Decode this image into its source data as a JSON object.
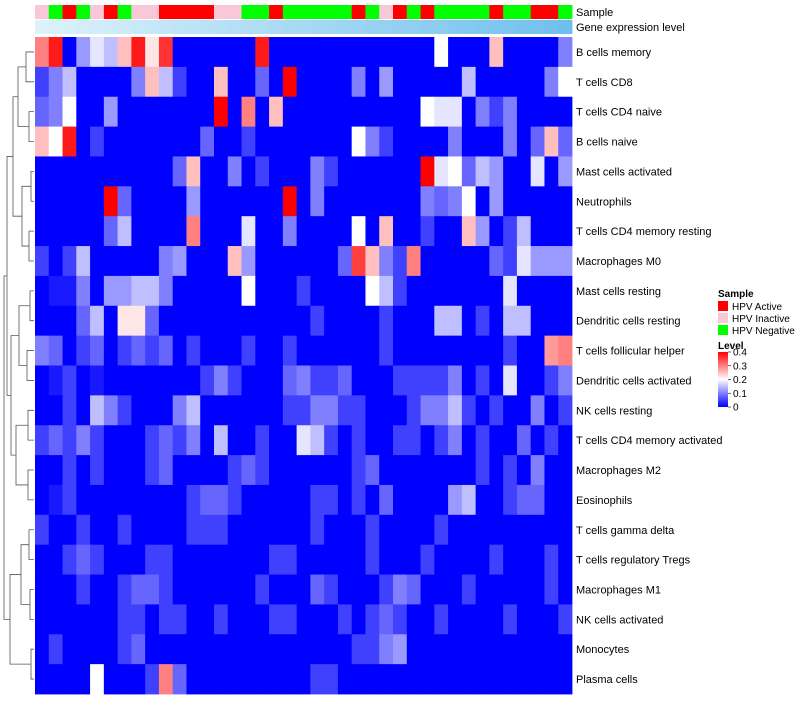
{
  "chart_data": {
    "type": "heatmap",
    "annotations": [
      {
        "name": "Sample",
        "key": "sample"
      },
      {
        "name": "Gene expression level",
        "key": "expr"
      }
    ],
    "sample_groups": [
      "I",
      "N",
      "A",
      "N",
      "I",
      "A",
      "N",
      "I",
      "I",
      "A",
      "A",
      "A",
      "A",
      "I",
      "I",
      "N",
      "N",
      "A",
      "N",
      "N",
      "N",
      "N",
      "N",
      "A",
      "N",
      "I",
      "A",
      "N",
      "A",
      "N",
      "N",
      "N",
      "N",
      "A",
      "N",
      "N",
      "A",
      "A",
      "N"
    ],
    "expression_level": [
      0.0,
      0.03,
      0.05,
      0.08,
      0.1,
      0.13,
      0.15,
      0.18,
      0.21,
      0.23,
      0.26,
      0.28,
      0.31,
      0.33,
      0.36,
      0.38,
      0.41,
      0.44,
      0.46,
      0.49,
      0.51,
      0.54,
      0.56,
      0.59,
      0.62,
      0.64,
      0.67,
      0.69,
      0.72,
      0.74,
      0.77,
      0.79,
      0.82,
      0.85,
      0.87,
      0.9,
      0.92,
      0.95,
      1.0
    ],
    "rows": [
      {
        "name": "B cells memory",
        "values": [
          0.3,
          0.38,
          0.0,
          0.12,
          0.18,
          0.15,
          0.25,
          0.38,
          0.22,
          0.36,
          0.0,
          0.0,
          0.0,
          0.0,
          0.0,
          0.0,
          0.38,
          0.0,
          0.0,
          0.0,
          0.0,
          0.0,
          0.0,
          0.0,
          0.0,
          0.0,
          0.0,
          0.0,
          0.0,
          0.2,
          0.0,
          0.0,
          0.0,
          0.25,
          0.0,
          0.0,
          0.0,
          0.0,
          0.1
        ]
      },
      {
        "name": "T cells CD8",
        "values": [
          0.05,
          0.1,
          0.15,
          0.0,
          0.0,
          0.0,
          0.0,
          0.1,
          0.25,
          0.15,
          0.05,
          0.0,
          0.0,
          0.25,
          0.0,
          0.0,
          0.08,
          0.0,
          0.4,
          0.0,
          0.0,
          0.0,
          0.0,
          0.1,
          0.0,
          0.12,
          0.0,
          0.0,
          0.0,
          0.0,
          0.0,
          0.15,
          0.0,
          0.0,
          0.0,
          0.0,
          0.0,
          0.1,
          0.2
        ]
      },
      {
        "name": "T cells CD4 naive",
        "values": [
          0.08,
          0.1,
          0.2,
          0.0,
          0.0,
          0.12,
          0.0,
          0.0,
          0.0,
          0.0,
          0.0,
          0.0,
          0.0,
          0.4,
          0.0,
          0.3,
          0.0,
          0.25,
          0.0,
          0.0,
          0.0,
          0.0,
          0.0,
          0.0,
          0.0,
          0.0,
          0.0,
          0.0,
          0.2,
          0.18,
          0.18,
          0.0,
          0.1,
          0.05,
          0.1,
          0.0,
          0.0,
          0.0,
          0.0
        ]
      },
      {
        "name": "B cells naive",
        "values": [
          0.25,
          0.2,
          0.38,
          0.0,
          0.05,
          0.0,
          0.0,
          0.0,
          0.0,
          0.0,
          0.0,
          0.0,
          0.08,
          0.0,
          0.0,
          0.05,
          0.0,
          0.0,
          0.0,
          0.0,
          0.0,
          0.0,
          0.0,
          0.2,
          0.1,
          0.05,
          0.0,
          0.0,
          0.0,
          0.0,
          0.1,
          0.0,
          0.0,
          0.0,
          0.1,
          0.0,
          0.08,
          0.25,
          0.08
        ]
      },
      {
        "name": "Mast cells activated",
        "values": [
          0.0,
          0.0,
          0.0,
          0.0,
          0.0,
          0.0,
          0.0,
          0.0,
          0.0,
          0.0,
          0.08,
          0.25,
          0.0,
          0.0,
          0.1,
          0.0,
          0.05,
          0.0,
          0.0,
          0.0,
          0.1,
          0.05,
          0.0,
          0.0,
          0.0,
          0.0,
          0.0,
          0.0,
          0.4,
          0.18,
          0.2,
          0.08,
          0.15,
          0.12,
          0.0,
          0.0,
          0.18,
          0.0,
          0.12
        ]
      },
      {
        "name": "Neutrophils",
        "values": [
          0.0,
          0.0,
          0.0,
          0.0,
          0.0,
          0.4,
          0.08,
          0.0,
          0.0,
          0.0,
          0.0,
          0.12,
          0.0,
          0.0,
          0.0,
          0.0,
          0.0,
          0.0,
          0.4,
          0.0,
          0.1,
          0.0,
          0.0,
          0.0,
          0.0,
          0.0,
          0.0,
          0.0,
          0.1,
          0.08,
          0.1,
          0.2,
          0.0,
          0.12,
          0.0,
          0.0,
          0.0,
          0.0,
          0.0
        ]
      },
      {
        "name": "T cells CD4 memory resting",
        "values": [
          0.0,
          0.0,
          0.0,
          0.0,
          0.0,
          0.08,
          0.15,
          0.0,
          0.0,
          0.0,
          0.0,
          0.3,
          0.0,
          0.0,
          0.0,
          0.18,
          0.0,
          0.0,
          0.1,
          0.0,
          0.0,
          0.0,
          0.0,
          0.2,
          0.0,
          0.25,
          0.0,
          0.0,
          0.05,
          0.0,
          0.0,
          0.25,
          0.12,
          0.0,
          0.05,
          0.15,
          0.0,
          0.0,
          0.0
        ]
      },
      {
        "name": "Macrophages M0",
        "values": [
          0.05,
          0.0,
          0.05,
          0.15,
          0.0,
          0.0,
          0.0,
          0.0,
          0.0,
          0.1,
          0.12,
          0.0,
          0.0,
          0.0,
          0.25,
          0.12,
          0.0,
          0.0,
          0.0,
          0.0,
          0.0,
          0.0,
          0.08,
          0.35,
          0.25,
          0.1,
          0.05,
          0.3,
          0.0,
          0.0,
          0.0,
          0.0,
          0.0,
          0.08,
          0.05,
          0.18,
          0.12,
          0.12,
          0.12
        ]
      },
      {
        "name": "Mast cells resting",
        "values": [
          0.0,
          0.02,
          0.02,
          0.1,
          0.0,
          0.12,
          0.12,
          0.15,
          0.15,
          0.1,
          0.0,
          0.0,
          0.0,
          0.0,
          0.0,
          0.2,
          0.0,
          0.0,
          0.0,
          0.05,
          0.0,
          0.0,
          0.0,
          0.0,
          0.2,
          0.15,
          0.05,
          0.0,
          0.0,
          0.0,
          0.0,
          0.0,
          0.0,
          0.0,
          0.18,
          0.0,
          0.0,
          0.0,
          0.0
        ]
      },
      {
        "name": "Dendritic cells resting",
        "values": [
          0.0,
          0.0,
          0.0,
          0.08,
          0.15,
          0.0,
          0.22,
          0.22,
          0.08,
          0.0,
          0.0,
          0.0,
          0.0,
          0.0,
          0.0,
          0.0,
          0.0,
          0.0,
          0.0,
          0.0,
          0.05,
          0.0,
          0.0,
          0.0,
          0.0,
          0.05,
          0.0,
          0.0,
          0.0,
          0.15,
          0.15,
          0.0,
          0.05,
          0.0,
          0.15,
          0.15,
          0.0,
          0.0,
          0.0
        ]
      },
      {
        "name": "T cells follicular helper",
        "values": [
          0.1,
          0.08,
          0.0,
          0.05,
          0.08,
          0.0,
          0.05,
          0.08,
          0.05,
          0.08,
          0.0,
          0.05,
          0.0,
          0.0,
          0.0,
          0.05,
          0.0,
          0.0,
          0.05,
          0.0,
          0.0,
          0.0,
          0.0,
          0.0,
          0.0,
          0.05,
          0.0,
          0.0,
          0.0,
          0.0,
          0.0,
          0.0,
          0.0,
          0.0,
          0.05,
          0.0,
          0.0,
          0.28,
          0.3
        ]
      },
      {
        "name": "Dendritic cells activated",
        "values": [
          0.0,
          0.02,
          0.05,
          0.0,
          0.02,
          0.0,
          0.0,
          0.0,
          0.0,
          0.0,
          0.0,
          0.0,
          0.05,
          0.1,
          0.05,
          0.0,
          0.0,
          0.0,
          0.08,
          0.1,
          0.05,
          0.05,
          0.08,
          0.0,
          0.0,
          0.0,
          0.05,
          0.05,
          0.05,
          0.05,
          0.1,
          0.0,
          0.05,
          0.0,
          0.18,
          0.0,
          0.0,
          0.05,
          0.1
        ]
      },
      {
        "name": "NK cells resting",
        "values": [
          0.0,
          0.0,
          0.05,
          0.0,
          0.15,
          0.1,
          0.05,
          0.0,
          0.0,
          0.0,
          0.1,
          0.15,
          0.0,
          0.0,
          0.0,
          0.0,
          0.0,
          0.0,
          0.05,
          0.05,
          0.1,
          0.1,
          0.05,
          0.05,
          0.0,
          0.0,
          0.0,
          0.05,
          0.1,
          0.1,
          0.15,
          0.05,
          0.0,
          0.05,
          0.0,
          0.0,
          0.1,
          0.0,
          0.05
        ]
      },
      {
        "name": "T cells CD4 memory activated",
        "values": [
          0.05,
          0.08,
          0.05,
          0.1,
          0.05,
          0.0,
          0.0,
          0.0,
          0.05,
          0.08,
          0.05,
          0.1,
          0.0,
          0.15,
          0.0,
          0.0,
          0.05,
          0.0,
          0.0,
          0.18,
          0.15,
          0.05,
          0.0,
          0.05,
          0.0,
          0.0,
          0.05,
          0.05,
          0.0,
          0.05,
          0.1,
          0.0,
          0.05,
          0.0,
          0.0,
          0.08,
          0.0,
          0.05,
          0.0
        ]
      },
      {
        "name": "Macrophages M2",
        "values": [
          0.0,
          0.0,
          0.05,
          0.0,
          0.05,
          0.0,
          0.0,
          0.0,
          0.05,
          0.08,
          0.0,
          0.0,
          0.0,
          0.0,
          0.05,
          0.08,
          0.05,
          0.0,
          0.0,
          0.0,
          0.0,
          0.0,
          0.0,
          0.05,
          0.08,
          0.0,
          0.0,
          0.0,
          0.0,
          0.0,
          0.0,
          0.0,
          0.05,
          0.0,
          0.05,
          0.0,
          0.1,
          0.0,
          0.0
        ]
      },
      {
        "name": "Eosinophils",
        "values": [
          0.0,
          0.02,
          0.05,
          0.0,
          0.0,
          0.0,
          0.0,
          0.0,
          0.0,
          0.0,
          0.0,
          0.05,
          0.08,
          0.08,
          0.05,
          0.0,
          0.0,
          0.0,
          0.0,
          0.0,
          0.05,
          0.05,
          0.0,
          0.05,
          0.0,
          0.08,
          0.0,
          0.0,
          0.0,
          0.0,
          0.12,
          0.15,
          0.0,
          0.0,
          0.05,
          0.08,
          0.08,
          0.0,
          0.0
        ]
      },
      {
        "name": "T cells gamma delta",
        "values": [
          0.05,
          0.0,
          0.0,
          0.05,
          0.0,
          0.0,
          0.05,
          0.0,
          0.0,
          0.0,
          0.0,
          0.05,
          0.05,
          0.05,
          0.0,
          0.0,
          0.0,
          0.0,
          0.0,
          0.0,
          0.05,
          0.0,
          0.0,
          0.0,
          0.05,
          0.0,
          0.0,
          0.0,
          0.0,
          0.05,
          0.0,
          0.0,
          0.0,
          0.0,
          0.0,
          0.0,
          0.0,
          0.0,
          0.0
        ]
      },
      {
        "name": "T cells regulatory  Tregs",
        "values": [
          0.0,
          0.0,
          0.05,
          0.08,
          0.05,
          0.0,
          0.0,
          0.0,
          0.05,
          0.05,
          0.0,
          0.0,
          0.0,
          0.0,
          0.0,
          0.0,
          0.0,
          0.05,
          0.05,
          0.0,
          0.0,
          0.0,
          0.0,
          0.0,
          0.05,
          0.0,
          0.0,
          0.0,
          0.05,
          0.0,
          0.0,
          0.0,
          0.0,
          0.05,
          0.0,
          0.0,
          0.0,
          0.05,
          0.0
        ]
      },
      {
        "name": "Macrophages M1",
        "values": [
          0.0,
          0.0,
          0.0,
          0.05,
          0.0,
          0.0,
          0.05,
          0.08,
          0.08,
          0.05,
          0.0,
          0.0,
          0.0,
          0.0,
          0.0,
          0.0,
          0.05,
          0.0,
          0.0,
          0.0,
          0.08,
          0.05,
          0.0,
          0.0,
          0.0,
          0.05,
          0.1,
          0.08,
          0.0,
          0.0,
          0.0,
          0.05,
          0.0,
          0.0,
          0.0,
          0.0,
          0.0,
          0.05,
          0.0
        ]
      },
      {
        "name": "NK cells activated",
        "values": [
          0.0,
          0.0,
          0.0,
          0.0,
          0.0,
          0.0,
          0.05,
          0.05,
          0.0,
          0.05,
          0.05,
          0.0,
          0.0,
          0.05,
          0.0,
          0.0,
          0.0,
          0.05,
          0.05,
          0.0,
          0.0,
          0.0,
          0.05,
          0.0,
          0.05,
          0.08,
          0.05,
          0.0,
          0.0,
          0.05,
          0.0,
          0.0,
          0.0,
          0.0,
          0.05,
          0.0,
          0.0,
          0.0,
          0.05
        ]
      },
      {
        "name": "Monocytes",
        "values": [
          0.0,
          0.05,
          0.0,
          0.0,
          0.0,
          0.0,
          0.05,
          0.08,
          0.0,
          0.0,
          0.0,
          0.0,
          0.0,
          0.0,
          0.0,
          0.0,
          0.0,
          0.0,
          0.0,
          0.0,
          0.0,
          0.0,
          0.0,
          0.05,
          0.05,
          0.1,
          0.12,
          0.0,
          0.0,
          0.0,
          0.0,
          0.0,
          0.0,
          0.0,
          0.0,
          0.0,
          0.0,
          0.0,
          0.0
        ]
      },
      {
        "name": "Plasma cells",
        "values": [
          0.0,
          0.0,
          0.0,
          0.0,
          0.2,
          0.0,
          0.0,
          0.0,
          0.05,
          0.3,
          0.08,
          0.0,
          0.0,
          0.0,
          0.0,
          0.0,
          0.0,
          0.0,
          0.0,
          0.0,
          0.05,
          0.05,
          0.0,
          0.0,
          0.0,
          0.0,
          0.0,
          0.0,
          0.0,
          0.0,
          0.0,
          0.0,
          0.0,
          0.0,
          0.0,
          0.0,
          0.0,
          0.0,
          0.0
        ]
      }
    ],
    "legend_sample": {
      "title": "Sample",
      "entries": [
        {
          "code": "A",
          "label": "HPV Active",
          "color": "#ff0000"
        },
        {
          "code": "I",
          "label": "HPV Inactive",
          "color": "#f8c8d8"
        },
        {
          "code": "N",
          "label": "HPV Negative",
          "color": "#00ff00"
        }
      ]
    },
    "legend_level": {
      "title": "Level",
      "ticks": [
        {
          "value": 0.4,
          "label": "0.4"
        },
        {
          "value": 0.3,
          "label": "0.3"
        },
        {
          "value": 0.2,
          "label": "0.2"
        },
        {
          "value": 0.1,
          "label": "0.1"
        },
        {
          "value": 0,
          "label": "0"
        }
      ],
      "range": [
        0,
        0.4
      ]
    },
    "colors": {
      "low": "#0000ff",
      "mid": "#ffffff",
      "high": "#ff0000"
    }
  }
}
